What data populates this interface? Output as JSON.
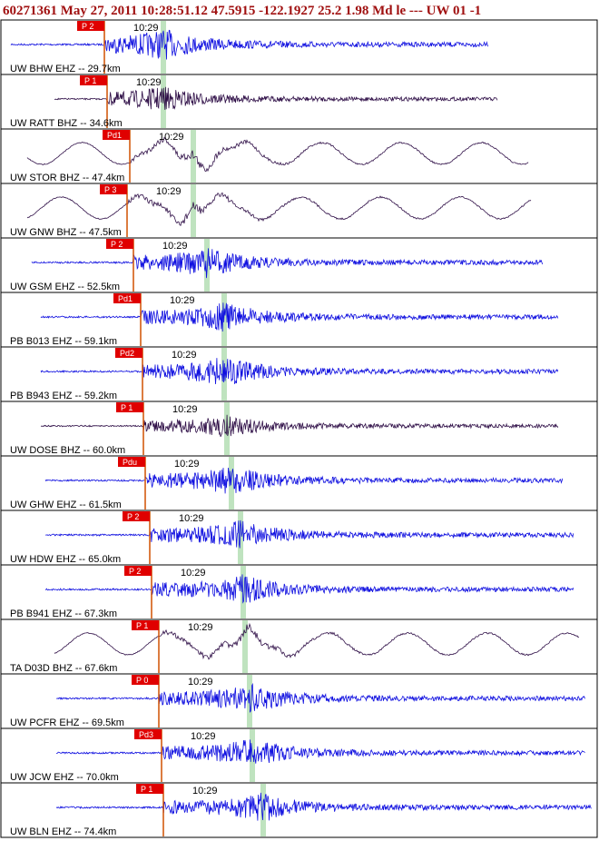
{
  "header": {
    "title": "60271361 May 27, 2011 10:28:51.12    47.5915 -122.1927 25.2 1.98 Md le --- UW 01   -1"
  },
  "traces": [
    {
      "label": "UW BHW EHZ -- 29.7km",
      "pick": "P 2",
      "time": "10:29"
    },
    {
      "label": "UW RATT BHZ -- 34.6km",
      "pick": "P 1",
      "time": "10:29"
    },
    {
      "label": "UW STOR BHZ -- 47.4km",
      "pick": "Pd1",
      "time": "10:29"
    },
    {
      "label": "UW GNW BHZ -- 47.5km",
      "pick": "P 3",
      "time": "10:29"
    },
    {
      "label": "UW GSM EHZ -- 52.5km",
      "pick": "P 2",
      "time": "10:29"
    },
    {
      "label": "PB B013 EHZ -- 59.1km",
      "pick": "Pd1",
      "time": "10:29"
    },
    {
      "label": "PB B943 EHZ -- 59.2km",
      "pick": "Pd2",
      "time": "10:29"
    },
    {
      "label": "UW DOSE BHZ -- 60.0km",
      "pick": "P 1",
      "time": "10:29"
    },
    {
      "label": "UW GHW EHZ -- 61.5km",
      "pick": "Pdu",
      "time": "10:29"
    },
    {
      "label": "UW HDW EHZ -- 65.0km",
      "pick": "P 2",
      "time": "10:29"
    },
    {
      "label": "PB B941 EHZ -- 67.3km",
      "pick": "P 2",
      "time": "10:29"
    },
    {
      "label": "TA D03D BHZ -- 67.6km",
      "pick": "P 1",
      "time": "10:29"
    },
    {
      "label": "UW PCFR EHZ -- 69.5km",
      "pick": "P 0",
      "time": "10:29"
    },
    {
      "label": "UW JCW EHZ -- 70.0km",
      "pick": "Pd3",
      "time": "10:29"
    },
    {
      "label": "UW BLN EHZ -- 74.4km",
      "pick": "P 1",
      "time": "10:29"
    }
  ]
}
